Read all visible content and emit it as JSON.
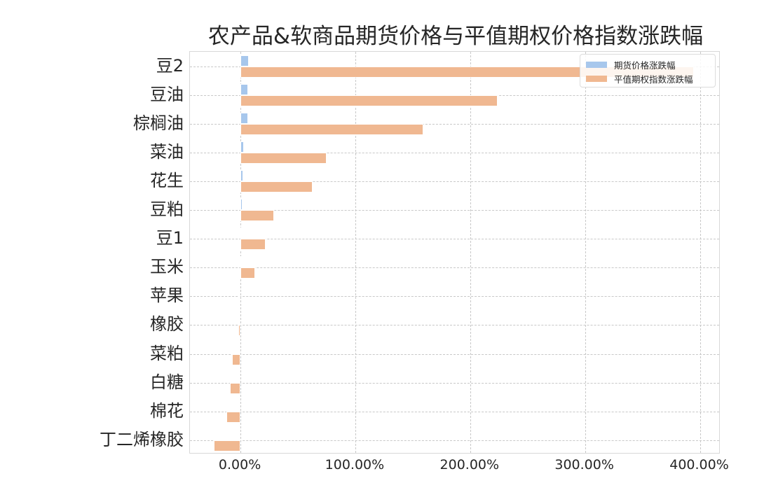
{
  "chart_data": {
    "type": "bar",
    "orientation": "horizontal",
    "title": "农产品&软商品期货价格与平值期权价格指数涨跌幅",
    "xlabel": "",
    "ylabel": "",
    "categories": [
      "豆2",
      "豆油",
      "棕榈油",
      "菜油",
      "花生",
      "豆粕",
      "豆1",
      "玉米",
      "苹果",
      "橡胶",
      "菜粕",
      "白糖",
      "棉花",
      "丁二烯橡胶"
    ],
    "series": [
      {
        "name": "期货价格涨跌幅",
        "color": "#a7c7ec",
        "values": [
          7.0,
          6.5,
          6.5,
          3.0,
          2.5,
          1.8,
          0.8,
          0.3,
          0.0,
          0.0,
          0.0,
          0.0,
          0.0,
          0.0
        ]
      },
      {
        "name": "平值期权指数涨跌幅",
        "color": "#f0b891",
        "values": [
          395.0,
          224.0,
          159.0,
          75.0,
          63.0,
          29.0,
          22.0,
          13.0,
          -1.0,
          -2.0,
          -7.5,
          -9.0,
          -12.0,
          -23.0
        ]
      }
    ],
    "unit": "%",
    "xlim": [
      -44,
      418
    ],
    "xticks": [
      0,
      100,
      200,
      300,
      400
    ],
    "xtick_labels": [
      "0.00%",
      "100.00%",
      "200.00%",
      "300.00%",
      "400.00%"
    ],
    "grid": true,
    "grid_style": "dashed",
    "legend_position": "upper right"
  },
  "legend": {
    "items": [
      {
        "label": "期货价格涨跌幅",
        "color": "#a7c7ec"
      },
      {
        "label": "平值期权指数涨跌幅",
        "color": "#f0b891"
      }
    ]
  }
}
